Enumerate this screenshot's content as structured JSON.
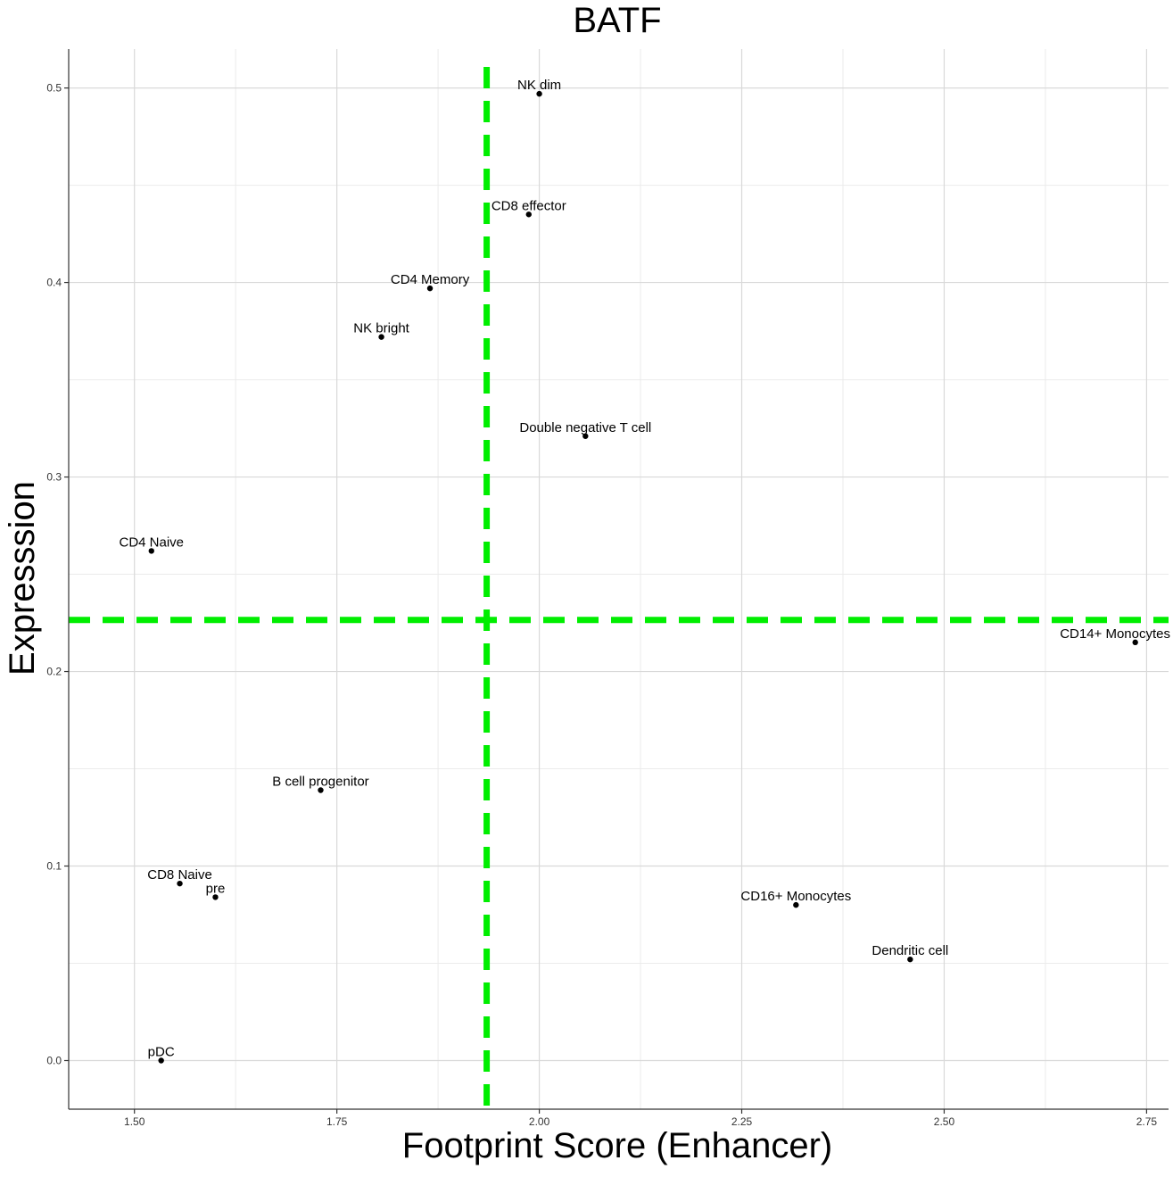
{
  "chart_data": {
    "type": "scatter",
    "title": "BATF",
    "xlabel": "Footprint Score (Enhancer)",
    "ylabel": "Expresssion",
    "xlim": [
      1.4188,
      2.7771
    ],
    "ylim": [
      -0.025,
      0.52
    ],
    "x_ticks": [
      1.5,
      1.75,
      2.0,
      2.25,
      2.5,
      2.75
    ],
    "x_tick_labels": [
      "1.50",
      "1.75",
      "2.00",
      "2.25",
      "2.50",
      "2.75"
    ],
    "y_ticks": [
      0.0,
      0.1,
      0.2,
      0.3,
      0.4,
      0.5
    ],
    "y_tick_labels": [
      "0.0",
      "0.1",
      "0.2",
      "0.3",
      "0.4",
      "0.5"
    ],
    "grid": true,
    "points": [
      {
        "label": "NK dim",
        "x": 2.0,
        "y": 0.497
      },
      {
        "label": "CD8 effector",
        "x": 1.987,
        "y": 0.435
      },
      {
        "label": "CD4 Memory",
        "x": 1.865,
        "y": 0.397
      },
      {
        "label": "NK bright",
        "x": 1.805,
        "y": 0.372
      },
      {
        "label": "Double negative T cell",
        "x": 2.057,
        "y": 0.321
      },
      {
        "label": "CD4 Naive",
        "x": 1.521,
        "y": 0.262
      },
      {
        "label": "CD14+ Monocytes",
        "x": 2.736,
        "y": 0.215
      },
      {
        "label": "B cell progenitor",
        "x": 1.73,
        "y": 0.139
      },
      {
        "label": "CD8 Naive",
        "x": 1.556,
        "y": 0.091
      },
      {
        "label": "pre",
        "x": 1.6,
        "y": 0.084
      },
      {
        "label": "CD16+ Monocytes",
        "x": 2.317,
        "y": 0.08
      },
      {
        "label": "Dendritic cell",
        "x": 2.458,
        "y": 0.052
      },
      {
        "label": "pDC",
        "x": 1.533,
        "y": 0.0
      }
    ],
    "reference_lines": [
      {
        "orientation": "vertical",
        "x": 1.935
      },
      {
        "orientation": "horizontal",
        "y": 0.2265
      }
    ],
    "colors": {
      "reference_line": "#00ee00",
      "grid_major": "#d9d9d9",
      "grid_minor": "#ebebeb",
      "point": "#000000"
    }
  }
}
